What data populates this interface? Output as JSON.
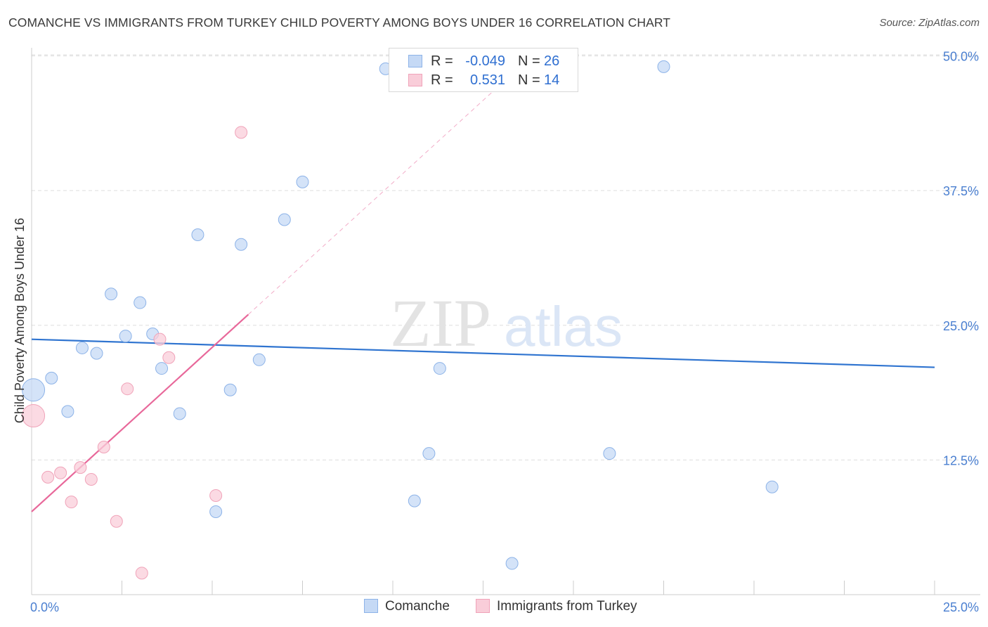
{
  "title": "COMANCHE VS IMMIGRANTS FROM TURKEY CHILD POVERTY AMONG BOYS UNDER 16 CORRELATION CHART",
  "source": "Source: ZipAtlas.com",
  "watermark": {
    "zip": "ZIP",
    "atlas": "atlas"
  },
  "legend": {
    "rows": [
      {
        "r_label": "R =",
        "r_value": "-0.049",
        "n_label": "N =",
        "n_value": "26"
      },
      {
        "r_label": "R =",
        "r_value": "0.531",
        "n_label": "N =",
        "n_value": "14"
      }
    ]
  },
  "colors": {
    "comanche_fill": "#c5d9f5",
    "comanche_stroke": "#8db3e8",
    "comanche_line": "#2f74d0",
    "turkey_fill": "#f9cdd9",
    "turkey_stroke": "#f0a3b9",
    "turkey_line": "#e8689a",
    "tick_text": "#4a7fd0",
    "grid": "#dddddd"
  },
  "chart_data": {
    "type": "scatter",
    "title": "COMANCHE VS IMMIGRANTS FROM TURKEY CHILD POVERTY AMONG BOYS UNDER 16 CORRELATION CHART",
    "xlabel": "",
    "ylabel": "Child Poverty Among Boys Under 16",
    "xlim": [
      0,
      25
    ],
    "ylim": [
      0,
      52
    ],
    "x_tick_labels": [
      "0.0%",
      "25.0%"
    ],
    "y_ticks": [
      12.5,
      25.0,
      37.5,
      50.0
    ],
    "y_tick_labels": [
      "12.5%",
      "25.0%",
      "37.5%",
      "50.0%"
    ],
    "grid": true,
    "legend_position": "bottom",
    "series": [
      {
        "name": "Comanche",
        "r": -0.049,
        "n": 26,
        "trend": {
          "x": [
            0,
            25
          ],
          "y": [
            23.7,
            21.1
          ]
        },
        "points": [
          {
            "x": 0.05,
            "y": 19.0,
            "big": true
          },
          {
            "x": 0.55,
            "y": 20.1
          },
          {
            "x": 1.0,
            "y": 17.0
          },
          {
            "x": 1.4,
            "y": 22.9
          },
          {
            "x": 1.8,
            "y": 22.4
          },
          {
            "x": 2.2,
            "y": 27.9
          },
          {
            "x": 2.6,
            "y": 24.0
          },
          {
            "x": 3.0,
            "y": 27.1
          },
          {
            "x": 3.35,
            "y": 24.2
          },
          {
            "x": 3.6,
            "y": 21.0
          },
          {
            "x": 4.1,
            "y": 16.8
          },
          {
            "x": 4.6,
            "y": 33.4
          },
          {
            "x": 5.1,
            "y": 7.7
          },
          {
            "x": 5.5,
            "y": 19.0
          },
          {
            "x": 5.8,
            "y": 32.5
          },
          {
            "x": 6.3,
            "y": 21.8
          },
          {
            "x": 7.0,
            "y": 34.8
          },
          {
            "x": 7.5,
            "y": 38.3
          },
          {
            "x": 9.8,
            "y": 48.8
          },
          {
            "x": 10.6,
            "y": 8.7
          },
          {
            "x": 11.0,
            "y": 13.1
          },
          {
            "x": 11.3,
            "y": 21.0
          },
          {
            "x": 13.3,
            "y": 2.9
          },
          {
            "x": 16.0,
            "y": 13.1
          },
          {
            "x": 17.5,
            "y": 49.0
          },
          {
            "x": 20.5,
            "y": 10.0
          }
        ]
      },
      {
        "name": "Immigrants from Turkey",
        "r": 0.531,
        "n": 14,
        "trend": {
          "x": [
            0,
            6.0
          ],
          "y": [
            7.7,
            26.0
          ]
        },
        "trend_dashed": {
          "x": [
            6.0,
            13.0
          ],
          "y": [
            26.0,
            47.4
          ]
        },
        "points": [
          {
            "x": 0.05,
            "y": 16.6,
            "big": true
          },
          {
            "x": 0.45,
            "y": 10.9
          },
          {
            "x": 0.8,
            "y": 11.3
          },
          {
            "x": 1.1,
            "y": 8.6
          },
          {
            "x": 1.35,
            "y": 11.8
          },
          {
            "x": 1.65,
            "y": 10.7
          },
          {
            "x": 2.0,
            "y": 13.7
          },
          {
            "x": 2.35,
            "y": 6.8
          },
          {
            "x": 2.65,
            "y": 19.1
          },
          {
            "x": 3.05,
            "y": 2.0
          },
          {
            "x": 3.55,
            "y": 23.7
          },
          {
            "x": 3.8,
            "y": 22.0
          },
          {
            "x": 5.1,
            "y": 9.2
          },
          {
            "x": 5.8,
            "y": 42.9
          }
        ]
      }
    ]
  },
  "bottom_legend": [
    "Comanche",
    "Immigrants from Turkey"
  ]
}
